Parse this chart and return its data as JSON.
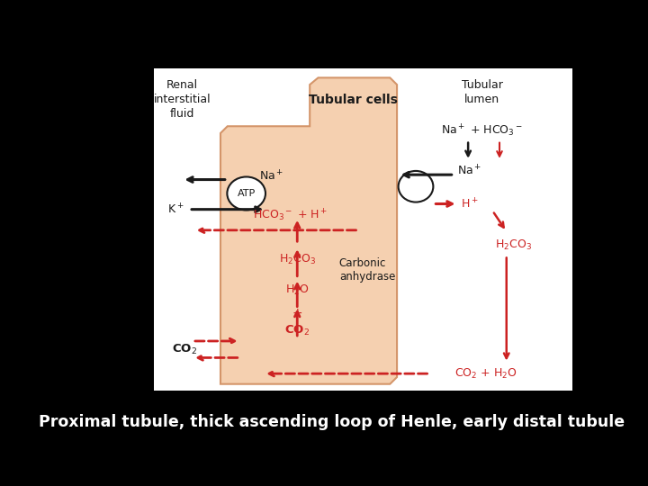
{
  "background_color": "#000000",
  "white_bg": "#ffffff",
  "cell_fill": "#f5d0b0",
  "cell_edge": "#d4956a",
  "caption": "Proximal tubule, thick ascending loop of Henle, early distal tubule",
  "caption_color": "#ffffff",
  "caption_fontsize": 12.5,
  "title_renal": "Renal\ninterstitial\nfluid",
  "title_tubular_cells": "Tubular cells",
  "title_tubular_lumen": "Tubular\nlumen",
  "black": "#1a1a1a",
  "red": "#cc2222",
  "dark_red": "#b81c1c"
}
